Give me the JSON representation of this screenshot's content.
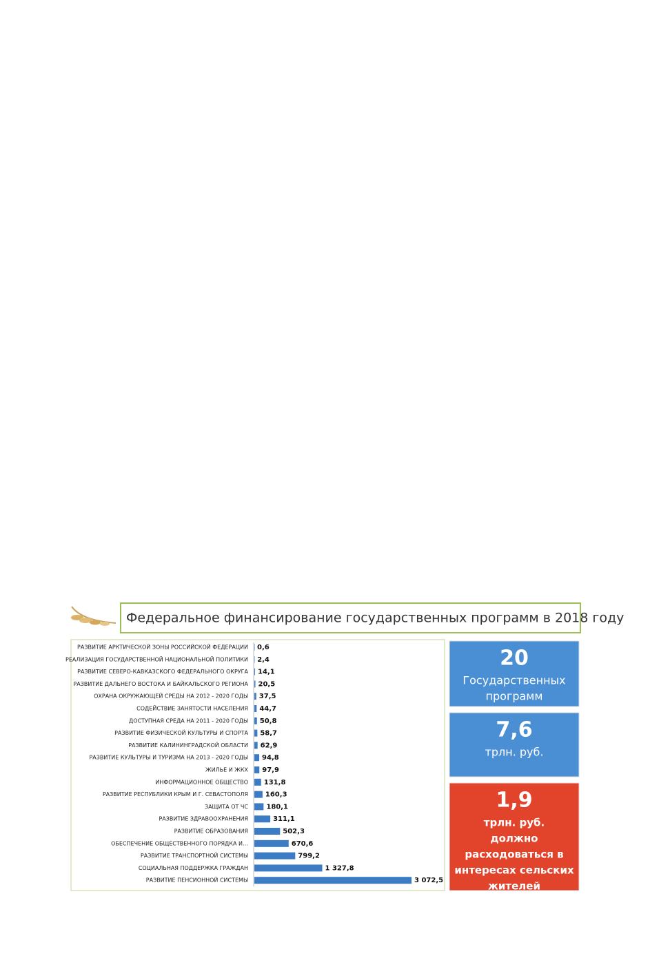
{
  "header": {
    "title": "Федеральное финансирование государственных программ в 2018 году"
  },
  "chart_data": {
    "type": "bar",
    "orientation": "horizontal",
    "color": "#3b7cc4",
    "categories": [
      "РАЗВИТИЕ АРКТИЧЕСКОЙ ЗОНЫ РОССИЙСКОЙ ФЕДЕРАЦИИ",
      "РЕАЛИЗАЦИЯ ГОСУДАРСТВЕННОЙ НАЦИОНАЛЬНОЙ ПОЛИТИКИ",
      "РАЗВИТИЕ СЕВЕРО-КАВКАЗСКОГО ФЕДЕРАЛЬНОГО ОКРУГА",
      "РАЗВИТИЕ ДАЛЬНЕГО ВОСТОКА И БАЙКАЛЬСКОГО РЕГИОНА",
      "ОХРАНА ОКРУЖАЮЩЕЙ СРЕДЫ НА 2012 - 2020 ГОДЫ",
      "СОДЕЙСТВИЕ ЗАНЯТОСТИ НАСЕЛЕНИЯ",
      "ДОСТУПНАЯ СРЕДА НА 2011 - 2020 ГОДЫ",
      "РАЗВИТИЕ ФИЗИЧЕСКОЙ КУЛЬТУРЫ И СПОРТА",
      "РАЗВИТИЕ КАЛИНИНГРАДСКОЙ ОБЛАСТИ",
      "РАЗВИТИЕ КУЛЬТУРЫ И ТУРИЗМА НА 2013 - 2020 ГОДЫ",
      "ЖИЛЬЕ И ЖКХ",
      "ИНФОРМАЦИОННОЕ ОБЩЕСТВО",
      "РАЗВИТИЕ РЕСПУБЛИКИ КРЫМ И Г. СЕВАСТОПОЛЯ",
      "ЗАЩИТА ОТ ЧС",
      "РАЗВИТИЕ ЗДРАВООХРАНЕНИЯ",
      "РАЗВИТИЕ ОБРАЗОВАНИЯ",
      "ОБЕСПЕЧЕНИЕ ОБЩЕСТВЕННОГО ПОРЯДКА И…",
      "РАЗВИТИЕ ТРАНСПОРТНОЙ СИСТЕМЫ",
      "СОЦИАЛЬНАЯ ПОДДЕРЖКА ГРАЖДАН",
      "РАЗВИТИЕ ПЕНСИОННОЙ СИСТЕМЫ"
    ],
    "values": [
      0.6,
      2.4,
      14.1,
      20.5,
      37.5,
      44.7,
      50.8,
      58.7,
      62.9,
      94.8,
      97.9,
      131.8,
      160.3,
      180.1,
      311.1,
      502.3,
      670.6,
      799.2,
      1327.8,
      3072.5
    ],
    "value_labels": [
      "0,6",
      "2,4",
      "14,1",
      "20,5",
      "37,5",
      "44,7",
      "50,8",
      "58,7",
      "62,9",
      "94,8",
      "97,9",
      "131,8",
      "160,3",
      "180,1",
      "311,1",
      "502,3",
      "670,6",
      "799,2",
      "1 327,8",
      "3 072,5"
    ]
  },
  "boxes": [
    {
      "color": "#4a8fd4",
      "big": "20",
      "lines": [
        "Государственных",
        "программ"
      ]
    },
    {
      "color": "#4a8fd4",
      "big": "7,6",
      "lines": [
        "трлн. руб."
      ]
    },
    {
      "color": "#e2432b",
      "big": "1,9",
      "lines": [
        "трлн. руб.",
        "должно",
        "расходоваться в",
        "интересах сельских",
        "жителей"
      ]
    }
  ]
}
